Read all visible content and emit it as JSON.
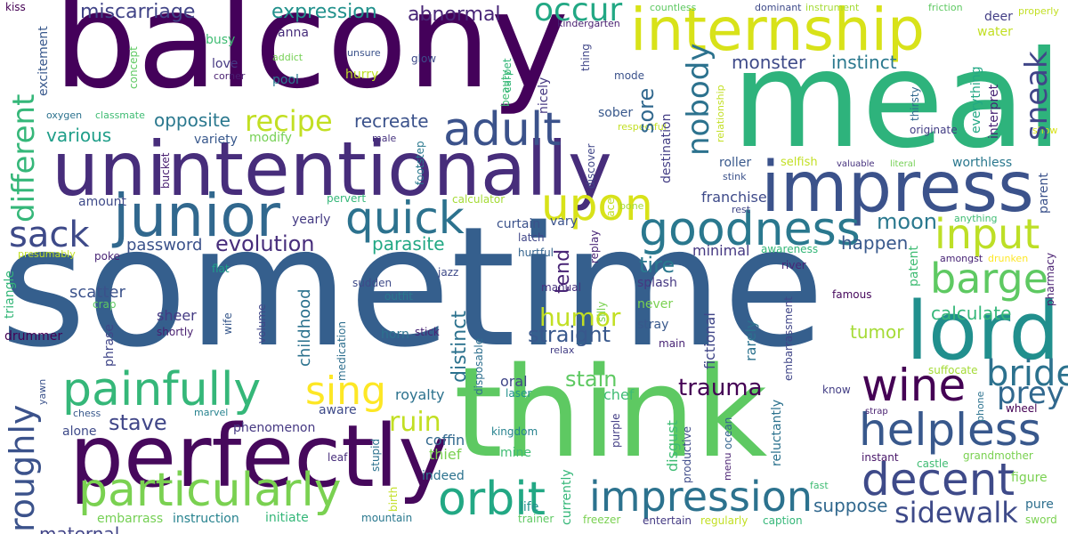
{
  "words": [
    {
      "text": "sometime",
      "color": "#355f8d"
    },
    {
      "text": "balcony",
      "color": "#44015a"
    },
    {
      "text": "meal",
      "color": "#2eb37c"
    },
    {
      "text": "think",
      "color": "#5ec962"
    },
    {
      "text": "unintentionally",
      "color": "#472d7b"
    },
    {
      "text": "perfectly",
      "color": "#46085c"
    },
    {
      "text": "internship",
      "color": "#d8e219"
    },
    {
      "text": "impress",
      "color": "#3b528b"
    },
    {
      "text": "junior",
      "color": "#31688e"
    },
    {
      "text": "lord",
      "color": "#218f8d"
    },
    {
      "text": "painfully",
      "color": "#35b779"
    },
    {
      "text": "particularly",
      "color": "#7ad151"
    },
    {
      "text": "impression",
      "color": "#2c728e"
    },
    {
      "text": "goodness",
      "color": "#2a788e"
    },
    {
      "text": "helpless",
      "color": "#38588c"
    },
    {
      "text": "decent",
      "color": "#3e4a89"
    },
    {
      "text": "wine",
      "color": "#440154"
    },
    {
      "text": "orbit",
      "color": "#22a884"
    },
    {
      "text": "adult",
      "color": "#3b528b"
    },
    {
      "text": "quick",
      "color": "#2c728e"
    },
    {
      "text": "upon",
      "color": "#d8e219"
    },
    {
      "text": "input",
      "color": "#bddf26"
    },
    {
      "text": "barge",
      "color": "#5ec962"
    },
    {
      "text": "sing",
      "color": "#fde725"
    },
    {
      "text": "bride",
      "color": "#2c728e"
    },
    {
      "text": "prey",
      "color": "#31688e"
    },
    {
      "text": "sidewalk",
      "color": "#3e4a89"
    },
    {
      "text": "sack",
      "color": "#3e4a89"
    },
    {
      "text": "recipe",
      "color": "#c2df23"
    },
    {
      "text": "evolution",
      "color": "#472d7b"
    },
    {
      "text": "trauma",
      "color": "#440154"
    },
    {
      "text": "ruin",
      "color": "#c2df23"
    },
    {
      "text": "humor",
      "color": "#c2df23"
    },
    {
      "text": "occur",
      "color": "#22a884"
    },
    {
      "text": "miscarriage",
      "color": "#414487"
    },
    {
      "text": "expression",
      "color": "#21918c"
    },
    {
      "text": "abnormal",
      "color": "#482677"
    },
    {
      "text": "monster",
      "color": "#3e4a89"
    },
    {
      "text": "instinct",
      "color": "#2a788e"
    },
    {
      "text": "opposite",
      "color": "#2a788e"
    },
    {
      "text": "recreate",
      "color": "#3b528b"
    },
    {
      "text": "various",
      "color": "#1f9e89"
    },
    {
      "text": "stave",
      "color": "#404688"
    },
    {
      "text": "straight",
      "color": "#38588c"
    },
    {
      "text": "stain",
      "color": "#5ec962"
    },
    {
      "text": "moon",
      "color": "#2a788e"
    },
    {
      "text": "happen",
      "color": "#38588c"
    },
    {
      "text": "tire",
      "color": "#2a788e"
    },
    {
      "text": "parasite",
      "color": "#22a884"
    },
    {
      "text": "password",
      "color": "#3b528b"
    },
    {
      "text": "calculate",
      "color": "#35b779"
    },
    {
      "text": "suppose",
      "color": "#31688e"
    },
    {
      "text": "tumor",
      "color": "#a5db36"
    },
    {
      "text": "maternal",
      "color": "#414487"
    },
    {
      "text": "instruction",
      "color": "#26828e"
    },
    {
      "text": "initiate",
      "color": "#35b779"
    },
    {
      "text": "embarrass",
      "color": "#75d054"
    },
    {
      "text": "chef",
      "color": "#3fbc73"
    },
    {
      "text": "royalty",
      "color": "#2c728e"
    },
    {
      "text": "coffin",
      "color": "#31688e"
    },
    {
      "text": "thief",
      "color": "#7ad151"
    },
    {
      "text": "indeed",
      "color": "#2c728e"
    },
    {
      "text": "aware",
      "color": "#3e4a89"
    },
    {
      "text": "oral",
      "color": "#404688"
    },
    {
      "text": "laser",
      "color": "#21918c"
    },
    {
      "text": "kingdom",
      "color": "#26828e"
    },
    {
      "text": "mine",
      "color": "#3fbc73"
    },
    {
      "text": "life",
      "color": "#21918c"
    },
    {
      "text": "mountain",
      "color": "#2a788e"
    },
    {
      "text": "trainer",
      "color": "#5ec962"
    },
    {
      "text": "freezer",
      "color": "#7ad151"
    },
    {
      "text": "entertain",
      "color": "#443a83"
    },
    {
      "text": "regularly",
      "color": "#c2df23"
    },
    {
      "text": "caption",
      "color": "#35b779"
    },
    {
      "text": "sword",
      "color": "#7ad151"
    },
    {
      "text": "pure",
      "color": "#2e6f8e"
    },
    {
      "text": "figure",
      "color": "#7ad151"
    },
    {
      "text": "grandmother",
      "color": "#7ad151"
    },
    {
      "text": "castle",
      "color": "#3fbc73"
    },
    {
      "text": "instant",
      "color": "#481769"
    },
    {
      "text": "wheel",
      "color": "#440154"
    },
    {
      "text": "strap",
      "color": "#481f70"
    },
    {
      "text": "know",
      "color": "#433e85"
    },
    {
      "text": "suffocate",
      "color": "#a5db36"
    },
    {
      "text": "famous",
      "color": "#46085c"
    },
    {
      "text": "river",
      "color": "#482576"
    },
    {
      "text": "awareness",
      "color": "#35b779"
    },
    {
      "text": "selfish",
      "color": "#c2df23"
    },
    {
      "text": "valuable",
      "color": "#46327e"
    },
    {
      "text": "literal",
      "color": "#75d054"
    },
    {
      "text": "worthless",
      "color": "#2a788e"
    },
    {
      "text": "originate",
      "color": "#433e85"
    },
    {
      "text": "roller",
      "color": "#38588c"
    },
    {
      "text": "stink",
      "color": "#3b528b"
    },
    {
      "text": "rest",
      "color": "#404688"
    },
    {
      "text": "franchise",
      "color": "#3e4a89"
    },
    {
      "text": "minimal",
      "color": "#453882"
    },
    {
      "text": "splash",
      "color": "#453882"
    },
    {
      "text": "never",
      "color": "#7ad151"
    },
    {
      "text": "stray",
      "color": "#38588c"
    },
    {
      "text": "main",
      "color": "#482475"
    },
    {
      "text": "curtain",
      "color": "#3b528b"
    },
    {
      "text": "vary",
      "color": "#3b528b"
    },
    {
      "text": "latch",
      "color": "#404688"
    },
    {
      "text": "hurtful",
      "color": "#33638d"
    },
    {
      "text": "manual",
      "color": "#46327e"
    },
    {
      "text": "relax",
      "color": "#433e85"
    },
    {
      "text": "calculator",
      "color": "#a5db36"
    },
    {
      "text": "pervert",
      "color": "#35b779"
    },
    {
      "text": "amount",
      "color": "#3e4a89"
    },
    {
      "text": "yearly",
      "color": "#443a83"
    },
    {
      "text": "variety",
      "color": "#38588c"
    },
    {
      "text": "modify",
      "color": "#75d054"
    },
    {
      "text": "male",
      "color": "#46327e"
    },
    {
      "text": "poke",
      "color": "#482475"
    },
    {
      "text": "presumably",
      "color": "#c2df23"
    },
    {
      "text": "flat",
      "color": "#1f9e89"
    },
    {
      "text": "jazz",
      "color": "#3e4a89"
    },
    {
      "text": "outfit",
      "color": "#2a788e"
    },
    {
      "text": "sudden",
      "color": "#3e4a89"
    },
    {
      "text": "sheer",
      "color": "#443a83"
    },
    {
      "text": "shortly",
      "color": "#481f70"
    },
    {
      "text": "scatter",
      "color": "#3b528b"
    },
    {
      "text": "drummer",
      "color": "#440154"
    },
    {
      "text": "crap",
      "color": "#5ec962"
    },
    {
      "text": "horn",
      "color": "#2c728e"
    },
    {
      "text": "stick",
      "color": "#482475"
    },
    {
      "text": "alone",
      "color": "#3e4a89"
    },
    {
      "text": "phenomenon",
      "color": "#453882"
    },
    {
      "text": "leaf",
      "color": "#472d7b"
    },
    {
      "text": "chess",
      "color": "#38588c"
    },
    {
      "text": "marvel",
      "color": "#26828e"
    },
    {
      "text": "kiss",
      "color": "#440154"
    },
    {
      "text": "busy",
      "color": "#3fbc73"
    },
    {
      "text": "love",
      "color": "#453882"
    },
    {
      "text": "corner",
      "color": "#481f70"
    },
    {
      "text": "pool",
      "color": "#2a788e"
    },
    {
      "text": "hurry",
      "color": "#bddf26"
    },
    {
      "text": "anna",
      "color": "#472d7b"
    },
    {
      "text": "unsure",
      "color": "#3b528b"
    },
    {
      "text": "glow",
      "color": "#3e4a89"
    },
    {
      "text": "addict",
      "color": "#75d054"
    },
    {
      "text": "oxygen",
      "color": "#2c728e"
    },
    {
      "text": "classmate",
      "color": "#3fbc73"
    },
    {
      "text": "sober",
      "color": "#38588c"
    },
    {
      "text": "mode",
      "color": "#3b528b"
    },
    {
      "text": "respectful",
      "color": "#c2df23"
    },
    {
      "text": "kindergarten",
      "color": "#481f70"
    },
    {
      "text": "countless",
      "color": "#5ec962"
    },
    {
      "text": "dominant",
      "color": "#3e4a89"
    },
    {
      "text": "instrument",
      "color": "#a5db36"
    },
    {
      "text": "friction",
      "color": "#5ec962"
    },
    {
      "text": "properly",
      "color": "#c2df23"
    },
    {
      "text": "deer",
      "color": "#433e85"
    },
    {
      "text": "water",
      "color": "#c2df23"
    },
    {
      "text": "show",
      "color": "#d8e219"
    },
    {
      "text": "anything",
      "color": "#3fbc73"
    },
    {
      "text": "drunken",
      "color": "#fde725"
    },
    {
      "text": "amongst",
      "color": "#482475"
    },
    {
      "text": "different",
      "color": "#35b779",
      "rot": true
    },
    {
      "text": "roughly",
      "color": "#3b528b",
      "rot": true
    },
    {
      "text": "sneak",
      "color": "#404688",
      "rot": true
    },
    {
      "text": "nobody",
      "color": "#2c728e",
      "rot": true
    },
    {
      "text": "sore",
      "color": "#31688e",
      "rot": true
    },
    {
      "text": "tend",
      "color": "#482475",
      "rot": true
    },
    {
      "text": "distinct",
      "color": "#2c728e",
      "rot": true
    },
    {
      "text": "excitement",
      "color": "#38588c",
      "rot": true
    },
    {
      "text": "concept",
      "color": "#5ec962",
      "rot": true
    },
    {
      "text": "triangle",
      "color": "#35b779",
      "rot": true
    },
    {
      "text": "phrase",
      "color": "#404688",
      "rot": true
    },
    {
      "text": "childhood",
      "color": "#2c728e",
      "rot": true
    },
    {
      "text": "bucket",
      "color": "#481f70",
      "rot": true
    },
    {
      "text": "footstep",
      "color": "#2a788e",
      "rot": true
    },
    {
      "text": "discover",
      "color": "#404688",
      "rot": true
    },
    {
      "text": "lace",
      "color": "#c2df23",
      "rot": true
    },
    {
      "text": "replay",
      "color": "#482475",
      "rot": true
    },
    {
      "text": "silly",
      "color": "#7ad151",
      "rot": true
    },
    {
      "text": "volume",
      "color": "#404688",
      "rot": true
    },
    {
      "text": "wife",
      "color": "#38588c",
      "rot": true
    },
    {
      "text": "medication",
      "color": "#2e6f8e",
      "rot": true
    },
    {
      "text": "disposable",
      "color": "#2e6f8e",
      "rot": true
    },
    {
      "text": "stupid",
      "color": "#2c728e",
      "rot": true
    },
    {
      "text": "birth",
      "color": "#c2df23",
      "rot": true
    },
    {
      "text": "currently",
      "color": "#35b779",
      "rot": true
    },
    {
      "text": "disgust",
      "color": "#3fbc73",
      "rot": true
    },
    {
      "text": "productive",
      "color": "#3e4a89",
      "rot": true
    },
    {
      "text": "purple",
      "color": "#433e85",
      "rot": true
    },
    {
      "text": "menu",
      "color": "#481f70",
      "rot": true
    },
    {
      "text": "ocean",
      "color": "#33638d",
      "rot": true
    },
    {
      "text": "reluctantly",
      "color": "#2c728e",
      "rot": true
    },
    {
      "text": "rarely",
      "color": "#2c728e",
      "rot": true
    },
    {
      "text": "fictional",
      "color": "#404688",
      "rot": true
    },
    {
      "text": "embarrassment",
      "color": "#404688",
      "rot": true
    },
    {
      "text": "destination",
      "color": "#433e85",
      "rot": true
    },
    {
      "text": "relationship",
      "color": "#c2df23",
      "rot": true
    },
    {
      "text": "nicely",
      "color": "#453882",
      "rot": true
    },
    {
      "text": "beauty",
      "color": "#3fbc73",
      "rot": true
    },
    {
      "text": "carpet",
      "color": "#35b779",
      "rot": true
    },
    {
      "text": "thing",
      "color": "#404688",
      "rot": true
    },
    {
      "text": "thirsty",
      "color": "#31688e",
      "rot": true
    },
    {
      "text": "everything",
      "color": "#22a884",
      "rot": true
    },
    {
      "text": "interpret",
      "color": "#482475",
      "rot": true
    },
    {
      "text": "parent",
      "color": "#3b528b",
      "rot": true
    },
    {
      "text": "patent",
      "color": "#3fbc73",
      "rot": true
    },
    {
      "text": "pharmacy",
      "color": "#481f70",
      "rot": true
    },
    {
      "text": "phone",
      "color": "#2c728e",
      "rot": true
    },
    {
      "text": "yawn",
      "color": "#3b528b",
      "rot": true
    },
    {
      "text": "fast",
      "color": "#3fbc73"
    },
    {
      "text": "bone",
      "color": "#a5db36"
    }
  ]
}
